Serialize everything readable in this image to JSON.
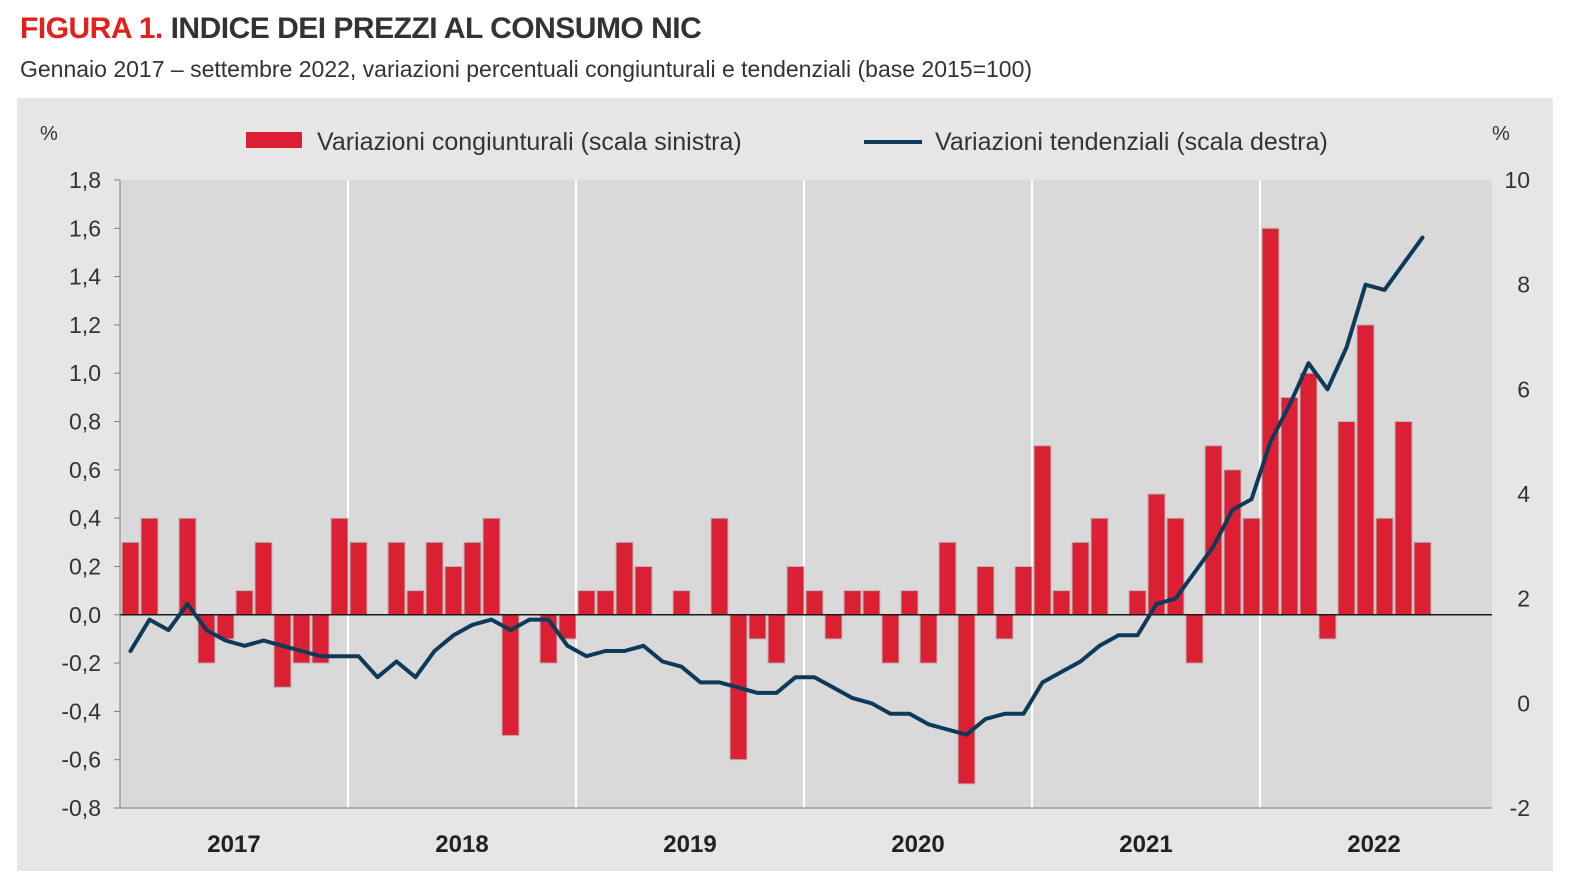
{
  "header": {
    "title_lead": "FIGURA 1.",
    "title_rest": " INDICE DEI PREZZI AL CONSUMO NIC",
    "subtitle": "Gennaio 2017 – settembre 2022, variazioni percentuali congiunturali e tendenziali (base 2015=100)"
  },
  "chart_data": {
    "type": "bar",
    "title": "INDICE DEI PREZZI AL CONSUMO NIC",
    "y_left_unit": "%",
    "y_right_unit": "%",
    "y_left_range": [
      -0.8,
      1.8
    ],
    "y_right_range": [
      -2,
      10
    ],
    "y_left_ticks": [
      "1,8",
      "1,6",
      "1,4",
      "1,2",
      "1,0",
      "0,8",
      "0,6",
      "0,4",
      "0,2",
      "0,0",
      "-0,2",
      "-0,4",
      "-0,6",
      "-0,8"
    ],
    "y_left_tick_values": [
      1.8,
      1.6,
      1.4,
      1.2,
      1.0,
      0.8,
      0.6,
      0.4,
      0.2,
      0.0,
      -0.2,
      -0.4,
      -0.6,
      -0.8
    ],
    "y_right_ticks": [
      "10",
      "8",
      "6",
      "4",
      "2",
      "0",
      "-2"
    ],
    "y_right_tick_values": [
      10,
      8,
      6,
      4,
      2,
      0,
      -2
    ],
    "years": [
      "2017",
      "2018",
      "2019",
      "2020",
      "2021",
      "2022"
    ],
    "grid": "vertical lines at year boundaries",
    "legend_position": "top",
    "colors": {
      "bars": "#dc2033",
      "line": "#0e3a5a",
      "plot_bg": "#d9d9d9",
      "frame_bg": "#e6e6e6"
    },
    "series": [
      {
        "name": "Variazioni congiunturali (scala sinistra)",
        "kind": "bar",
        "axis": "left",
        "values": [
          0.3,
          0.4,
          0.0,
          0.4,
          -0.2,
          -0.1,
          0.1,
          0.3,
          -0.3,
          -0.2,
          -0.2,
          0.4,
          0.3,
          0.0,
          0.3,
          0.1,
          0.3,
          0.2,
          0.3,
          0.4,
          -0.5,
          0.0,
          -0.2,
          -0.1,
          0.1,
          0.1,
          0.3,
          0.2,
          0.0,
          0.1,
          0.0,
          0.4,
          -0.6,
          -0.1,
          -0.2,
          0.2,
          0.1,
          -0.1,
          0.1,
          0.1,
          -0.2,
          0.1,
          -0.2,
          0.3,
          -0.7,
          0.2,
          -0.1,
          0.2,
          0.7,
          0.1,
          0.3,
          0.4,
          0.0,
          0.1,
          0.5,
          0.4,
          -0.2,
          0.7,
          0.6,
          0.4,
          1.6,
          0.9,
          1.0,
          -0.1,
          0.8,
          1.2,
          0.4,
          0.8,
          0.3
        ]
      },
      {
        "name": "Variazioni tendenziali (scala destra)",
        "kind": "line",
        "axis": "right",
        "values": [
          1.0,
          1.6,
          1.4,
          1.9,
          1.4,
          1.2,
          1.1,
          1.2,
          1.1,
          1.0,
          0.9,
          0.9,
          0.9,
          0.5,
          0.8,
          0.5,
          1.0,
          1.3,
          1.5,
          1.6,
          1.4,
          1.6,
          1.6,
          1.1,
          0.9,
          1.0,
          1.0,
          1.1,
          0.8,
          0.7,
          0.4,
          0.4,
          0.3,
          0.2,
          0.2,
          0.5,
          0.5,
          0.3,
          0.1,
          0.0,
          -0.2,
          -0.2,
          -0.4,
          -0.5,
          -0.6,
          -0.3,
          -0.2,
          -0.2,
          0.4,
          0.6,
          0.8,
          1.1,
          1.3,
          1.3,
          1.9,
          2.0,
          2.5,
          3.0,
          3.7,
          3.9,
          5.0,
          5.7,
          6.5,
          6.0,
          6.8,
          8.0,
          7.9,
          8.4,
          8.9
        ]
      }
    ]
  }
}
